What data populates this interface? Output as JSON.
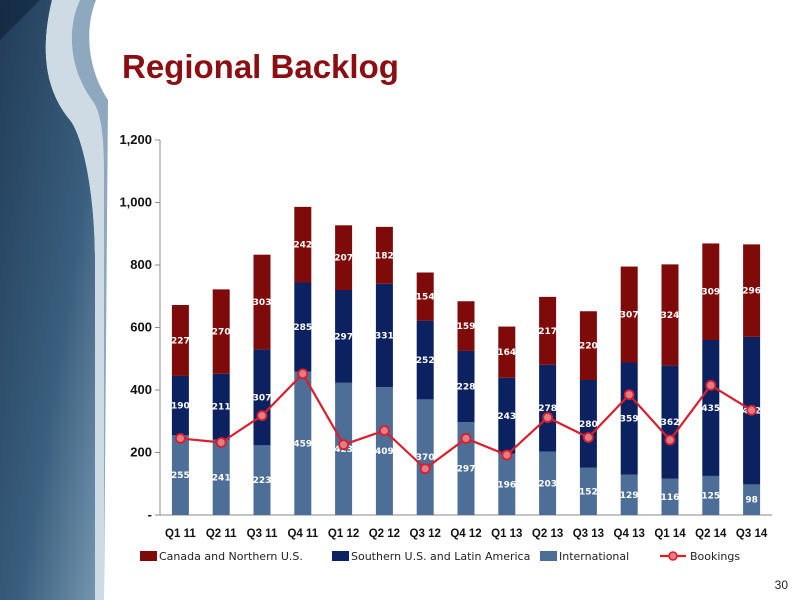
{
  "slide": {
    "title": "Regional Backlog",
    "page_number": "30"
  },
  "colors": {
    "canada": "#7F0A0A",
    "southern": "#0B2160",
    "international": "#4D6E96",
    "bookings_line": "#D8202C",
    "bookings_marker_fill": "#E07D86",
    "title": "#8B0E12"
  },
  "chart_data": {
    "type": "bar",
    "stacked": true,
    "categories": [
      "Q1 11",
      "Q2 11",
      "Q3 11",
      "Q4 11",
      "Q1 12",
      "Q2 12",
      "Q3 12",
      "Q4 12",
      "Q1 13",
      "Q2 13",
      "Q3 13",
      "Q4 13",
      "Q1 14",
      "Q2 14",
      "Q3 14"
    ],
    "series": [
      {
        "name": "International",
        "values": [
          255,
          241,
          223,
          459,
          423,
          409,
          370,
          297,
          196,
          203,
          152,
          129,
          116,
          125,
          98
        ]
      },
      {
        "name": "Southern U.S. and Latin America",
        "values": [
          190,
          211,
          307,
          285,
          297,
          331,
          252,
          228,
          243,
          278,
          280,
          359,
          362,
          435,
          472
        ]
      },
      {
        "name": "Canada and Northern U.S.",
        "values": [
          227,
          270,
          303,
          242,
          207,
          182,
          154,
          159,
          164,
          217,
          220,
          307,
          324,
          309,
          296
        ]
      }
    ],
    "line_series": {
      "name": "Bookings",
      "values": [
        245,
        232,
        318,
        452,
        225,
        270,
        148,
        245,
        192,
        312,
        248,
        385,
        240,
        415,
        335
      ]
    },
    "ylim": [
      0,
      1200
    ],
    "yticks": [
      0,
      200,
      400,
      600,
      800,
      1000,
      1200
    ],
    "ytick_labels": [
      "-",
      "200",
      "400",
      "600",
      "800",
      "1,000",
      "1,200"
    ],
    "legend_order": [
      "Canada and Northern U.S.",
      "Southern U.S. and Latin America",
      "International",
      "Bookings"
    ],
    "legend_position": "bottom",
    "grid": false
  }
}
